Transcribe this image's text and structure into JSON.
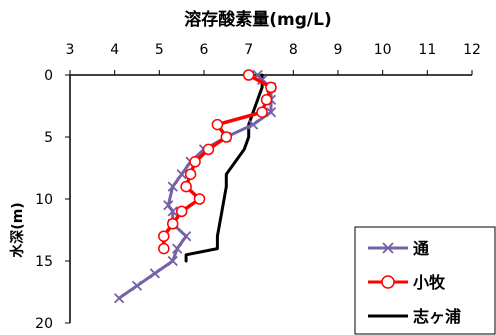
{
  "chart_data": {
    "type": "line",
    "title": "溶存酸素量(mg/L)",
    "xlabel": "",
    "ylabel": "水深(m)",
    "x_axis_position": "top",
    "y_axis_inverted": true,
    "xlim": [
      3,
      12
    ],
    "ylim": [
      0,
      20
    ],
    "x_ticks": [
      3,
      4,
      5,
      6,
      7,
      8,
      9,
      10,
      11,
      12
    ],
    "y_ticks": [
      0,
      5,
      10,
      15,
      20
    ],
    "grid": false,
    "legend_position": "bottom-right",
    "series": [
      {
        "name": "通",
        "color": "#7461a6",
        "marker": "x",
        "points": [
          [
            7.2,
            0
          ],
          [
            7.3,
            0.4
          ],
          [
            7.5,
            1
          ],
          [
            7.5,
            2
          ],
          [
            7.5,
            3
          ],
          [
            7.1,
            4
          ],
          [
            6.5,
            5
          ],
          [
            6.0,
            6
          ],
          [
            5.7,
            7
          ],
          [
            5.5,
            8
          ],
          [
            5.3,
            9
          ],
          [
            5.2,
            10.5
          ],
          [
            5.3,
            11
          ],
          [
            5.3,
            12
          ],
          [
            5.6,
            13
          ],
          [
            5.4,
            14
          ],
          [
            5.3,
            15
          ],
          [
            4.9,
            16
          ],
          [
            4.5,
            17
          ],
          [
            4.1,
            18
          ]
        ]
      },
      {
        "name": "小牧",
        "color": "#ff0000",
        "marker": "circle",
        "points": [
          [
            7.0,
            0
          ],
          [
            7.5,
            1
          ],
          [
            7.4,
            2
          ],
          [
            7.3,
            3
          ],
          [
            6.3,
            4
          ],
          [
            6.5,
            5
          ],
          [
            6.1,
            6
          ],
          [
            5.8,
            7
          ],
          [
            5.7,
            8
          ],
          [
            5.6,
            9
          ],
          [
            5.9,
            10
          ],
          [
            5.5,
            11
          ],
          [
            5.3,
            12
          ],
          [
            5.1,
            13
          ],
          [
            5.1,
            14
          ]
        ]
      },
      {
        "name": "志ヶ浦",
        "color": "#000000",
        "marker": "none",
        "points": [
          [
            7.3,
            0
          ],
          [
            7.3,
            1
          ],
          [
            7.2,
            2
          ],
          [
            7.1,
            3
          ],
          [
            7.0,
            4
          ],
          [
            7.0,
            5
          ],
          [
            6.9,
            6
          ],
          [
            6.7,
            7
          ],
          [
            6.5,
            8
          ],
          [
            6.5,
            9
          ],
          [
            6.4,
            11
          ],
          [
            6.3,
            13
          ],
          [
            6.3,
            14
          ],
          [
            5.6,
            14.5
          ],
          [
            5.6,
            15
          ]
        ]
      }
    ]
  }
}
